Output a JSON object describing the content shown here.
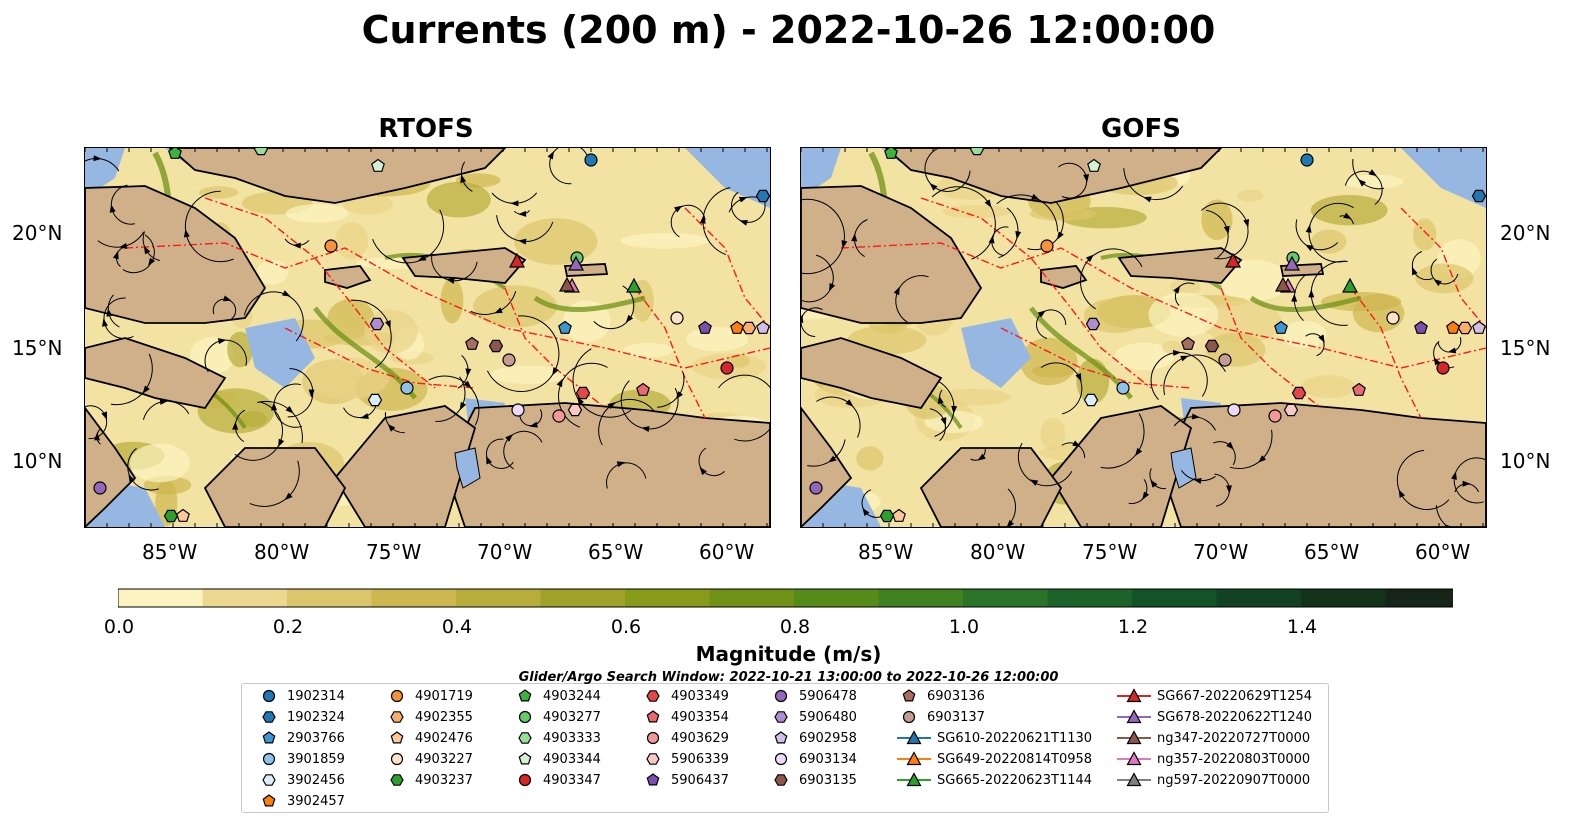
{
  "figure": {
    "title": "Currents (200 m) - 2022-10-26 12:00:00",
    "panels": [
      {
        "id": "rtofs",
        "title": "RTOFS"
      },
      {
        "id": "gofs",
        "title": "GOFS"
      }
    ],
    "x_tick_labels": [
      "85°W",
      "80°W",
      "75°W",
      "70°W",
      "65°W",
      "60°W"
    ],
    "y_tick_labels": [
      "20°N",
      "15°N",
      "10°N"
    ],
    "colorbar": {
      "label": "Magnitude (m/s)",
      "tick_labels": [
        "0.0",
        "0.2",
        "0.4",
        "0.6",
        "0.8",
        "1.0",
        "1.2",
        "1.4"
      ],
      "colors": [
        "#fbf3c0",
        "#ecd98f",
        "#dcc66b",
        "#cdb74f",
        "#b7ad3a",
        "#9fa129",
        "#879a19",
        "#6f9116",
        "#548b19",
        "#3f8020",
        "#2b7328",
        "#1c632a",
        "#145227",
        "#124222",
        "#13321c",
        "#17241a"
      ]
    },
    "legend": {
      "title": "Glider/Argo Search Window: 2022-10-21 13:00:00 to 2022-10-26 12:00:00",
      "items": [
        {
          "label": "1902314",
          "marker": "circle",
          "color": "#1f77b4"
        },
        {
          "label": "1902324",
          "marker": "hexagon",
          "color": "#1f77b4"
        },
        {
          "label": "2903766",
          "marker": "pentagon",
          "color": "#3f96d0"
        },
        {
          "label": "3901859",
          "marker": "circle",
          "color": "#8fc2ea"
        },
        {
          "label": "3902456",
          "marker": "hexagon",
          "color": "#dcecf8"
        },
        {
          "label": "3902457",
          "marker": "pentagon",
          "color": "#ff7f0e"
        },
        {
          "label": "4901719",
          "marker": "circle",
          "color": "#f5923a"
        },
        {
          "label": "4902355",
          "marker": "hexagon",
          "color": "#f9ae6c"
        },
        {
          "label": "4902476",
          "marker": "pentagon",
          "color": "#fcc898"
        },
        {
          "label": "4903227",
          "marker": "circle",
          "color": "#fde3c8"
        },
        {
          "label": "4903237",
          "marker": "hexagon",
          "color": "#2ca02c"
        },
        {
          "label": "4903244",
          "marker": "pentagon",
          "color": "#3db33d"
        },
        {
          "label": "4903277",
          "marker": "circle",
          "color": "#67c967"
        },
        {
          "label": "4903333",
          "marker": "hexagon",
          "color": "#98dd98"
        },
        {
          "label": "4903344",
          "marker": "pentagon",
          "color": "#d3f2cf"
        },
        {
          "label": "4903347",
          "marker": "circle",
          "color": "#d62728"
        },
        {
          "label": "4903349",
          "marker": "hexagon",
          "color": "#e0464a"
        },
        {
          "label": "4903354",
          "marker": "pentagon",
          "color": "#e86a6c"
        },
        {
          "label": "4903629",
          "marker": "circle",
          "color": "#f29898"
        },
        {
          "label": "5906339",
          "marker": "hexagon",
          "color": "#f9c9c6"
        },
        {
          "label": "5906437",
          "marker": "pentagon",
          "color": "#7b4fb0"
        },
        {
          "label": "5906478",
          "marker": "circle",
          "color": "#9467bd"
        },
        {
          "label": "5906480",
          "marker": "hexagon",
          "color": "#b08cd5"
        },
        {
          "label": "6902958",
          "marker": "pentagon",
          "color": "#d3bde9"
        },
        {
          "label": "6903134",
          "marker": "circle",
          "color": "#edd9f7"
        },
        {
          "label": "6903135",
          "marker": "hexagon",
          "color": "#8c564b"
        },
        {
          "label": "6903136",
          "marker": "pentagon",
          "color": "#a56e61"
        },
        {
          "label": "6903137",
          "marker": "circle",
          "color": "#c49c94"
        },
        {
          "label": "SG610-20220621T1130",
          "marker": "triangle-line",
          "color": "#1f77b4"
        },
        {
          "label": "SG649-20220814T0958",
          "marker": "triangle-line",
          "color": "#ff7f0e"
        },
        {
          "label": "SG665-20220623T1144",
          "marker": "triangle-line",
          "color": "#2ca02c"
        },
        {
          "label": "SG667-20220629T1254",
          "marker": "triangle-line",
          "color": "#d62728"
        },
        {
          "label": "SG678-20220622T1240",
          "marker": "triangle-line",
          "color": "#9467bd"
        },
        {
          "label": "ng347-20220727T0000",
          "marker": "triangle-line",
          "color": "#8c564b"
        },
        {
          "label": "ng357-20220803T0000",
          "marker": "triangle-line",
          "color": "#e377c2"
        },
        {
          "label": "ng597-20220907T0000",
          "marker": "triangle-line",
          "color": "#7f7f7f"
        }
      ]
    }
  }
}
